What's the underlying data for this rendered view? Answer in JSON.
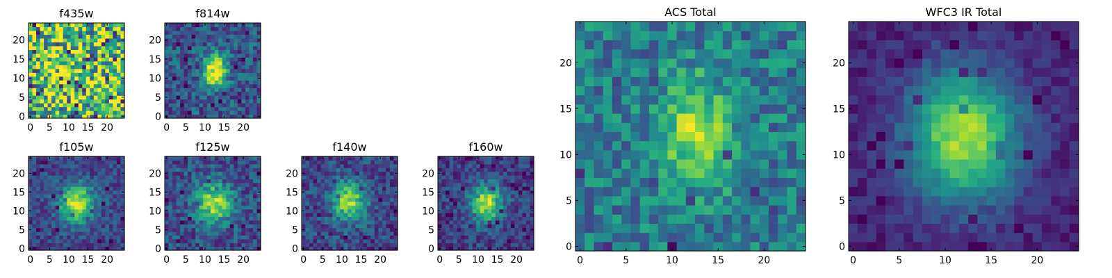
{
  "figure": {
    "colormap": "viridis",
    "axis_frame_color": "#000000"
  },
  "chart_data": [
    {
      "type": "heatmap",
      "title": "f435w",
      "xlabel": "",
      "ylabel": "",
      "xlim": [
        -0.5,
        24.5
      ],
      "ylim": [
        -0.5,
        24.5
      ],
      "x_ticks": [
        0,
        5,
        10,
        15,
        20
      ],
      "y_ticks": [
        0,
        5,
        10,
        15,
        20
      ],
      "grid": false,
      "source_center": null,
      "note_values": "noise-dominated"
    },
    {
      "type": "heatmap",
      "title": "f814w",
      "xlabel": "",
      "ylabel": "",
      "xlim": [
        -0.5,
        24.5
      ],
      "ylim": [
        -0.5,
        24.5
      ],
      "x_ticks": [
        0,
        5,
        10,
        15,
        20
      ],
      "y_ticks": [
        0,
        5,
        10,
        15,
        20
      ],
      "grid": false,
      "source_center": [
        12.5,
        12
      ]
    },
    {
      "type": "heatmap",
      "title": "f105w",
      "xlabel": "",
      "ylabel": "",
      "xlim": [
        -0.5,
        24.5
      ],
      "ylim": [
        -0.5,
        24.5
      ],
      "x_ticks": [
        0,
        5,
        10,
        15,
        20
      ],
      "y_ticks": [
        0,
        5,
        10,
        15,
        20
      ],
      "grid": false,
      "source_center": [
        12,
        12
      ]
    },
    {
      "type": "heatmap",
      "title": "f125w",
      "xlabel": "",
      "ylabel": "",
      "xlim": [
        -0.5,
        24.5
      ],
      "ylim": [
        -0.5,
        24.5
      ],
      "x_ticks": [
        0,
        5,
        10,
        15,
        20
      ],
      "y_ticks": [
        0,
        5,
        10,
        15,
        20
      ],
      "grid": false,
      "source_center": [
        12.5,
        12
      ]
    },
    {
      "type": "heatmap",
      "title": "f140w",
      "xlabel": "",
      "ylabel": "",
      "xlim": [
        -0.5,
        24.5
      ],
      "ylim": [
        -0.5,
        24.5
      ],
      "x_ticks": [
        0,
        5,
        10,
        15,
        20
      ],
      "y_ticks": [
        0,
        5,
        10,
        15,
        20
      ],
      "grid": false,
      "source_center": [
        12,
        12.5
      ]
    },
    {
      "type": "heatmap",
      "title": "f160w",
      "xlabel": "",
      "ylabel": "",
      "xlim": [
        -0.5,
        24.5
      ],
      "ylim": [
        -0.5,
        24.5
      ],
      "x_ticks": [
        0,
        5,
        10,
        15,
        20
      ],
      "y_ticks": [
        0,
        5,
        10,
        15,
        20
      ],
      "grid": false,
      "source_center": [
        12,
        12
      ]
    },
    {
      "type": "heatmap",
      "title": "ACS Total",
      "xlabel": "",
      "ylabel": "",
      "xlim": [
        -0.5,
        24.5
      ],
      "ylim": [
        -0.5,
        24.5
      ],
      "x_ticks": [
        0,
        5,
        10,
        15,
        20
      ],
      "y_ticks": [
        0,
        5,
        10,
        15,
        20
      ],
      "grid": false,
      "source_center": [
        12.5,
        12.5
      ]
    },
    {
      "type": "heatmap",
      "title": "WFC3 IR Total",
      "xlabel": "",
      "ylabel": "",
      "xlim": [
        -0.5,
        24.5
      ],
      "ylim": [
        -0.5,
        24.5
      ],
      "x_ticks": [
        0,
        5,
        10,
        15,
        20
      ],
      "y_ticks": [
        0,
        5,
        10,
        15,
        20
      ],
      "grid": false,
      "source_center": [
        12,
        12
      ]
    }
  ]
}
